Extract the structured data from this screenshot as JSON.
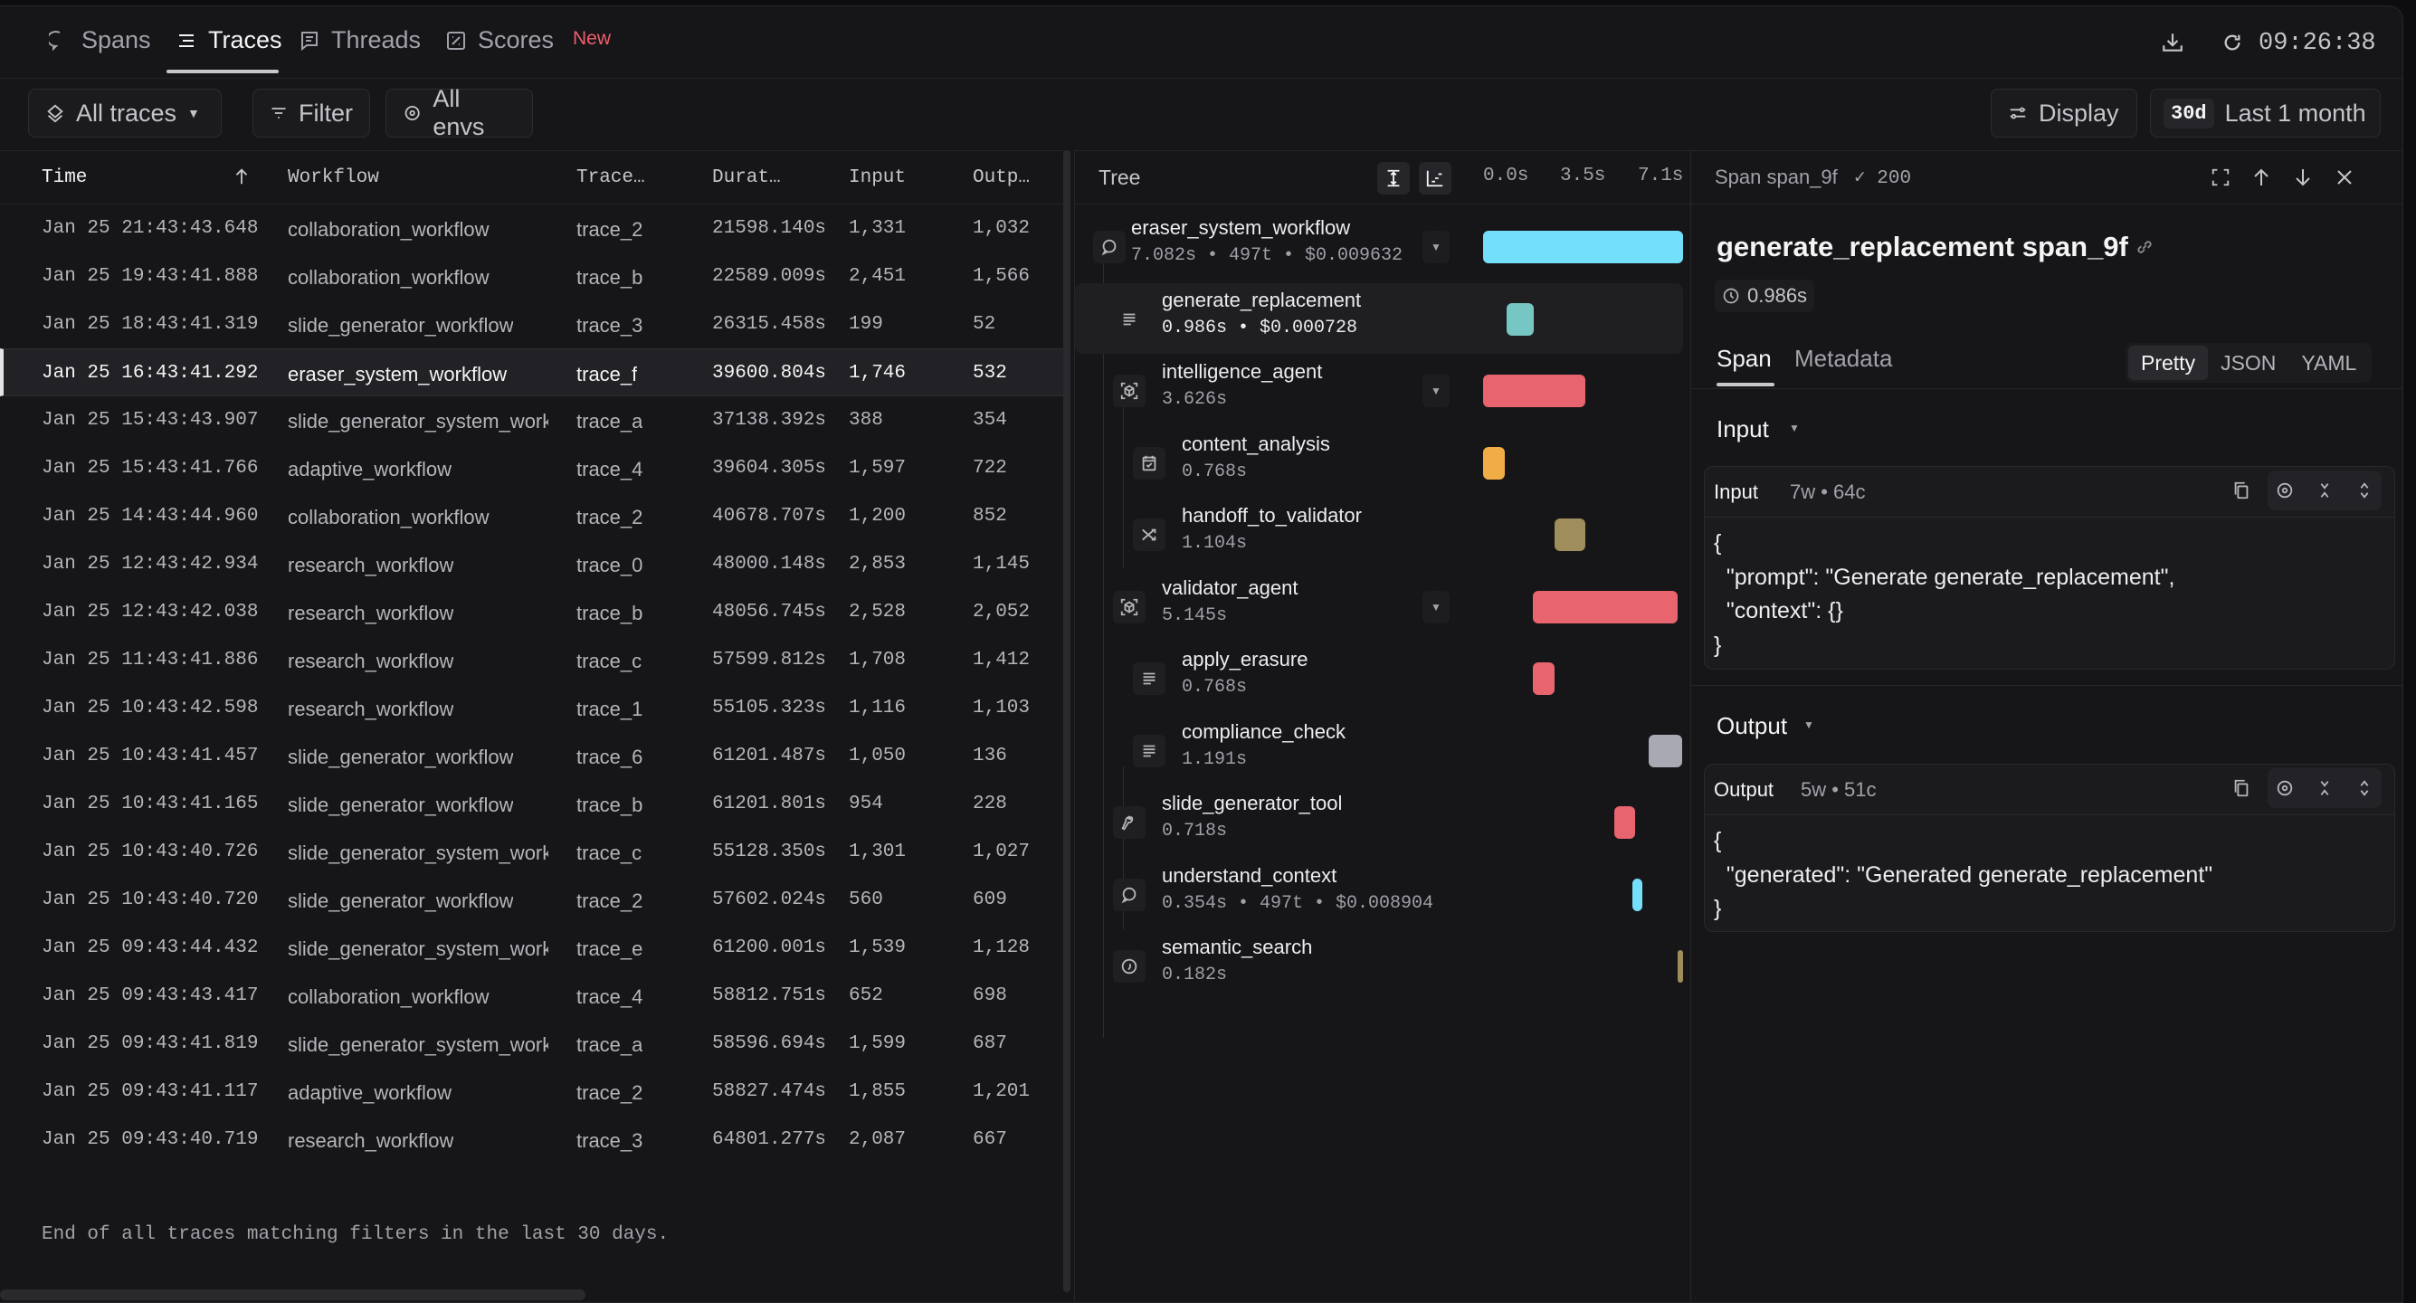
{
  "tabs": [
    {
      "label": "Spans",
      "icon": "chat-bubble-icon"
    },
    {
      "label": "Traces",
      "icon": "list-icon",
      "active": true
    },
    {
      "label": "Threads",
      "icon": "message-square-icon"
    },
    {
      "label": "Scores",
      "icon": "score-icon",
      "badge": "New"
    }
  ],
  "header": {
    "time": "09:26:38"
  },
  "toolbar": {
    "all_traces": "All traces",
    "filter": "Filter",
    "all_envs": "All envs",
    "display": "Display",
    "range_badge": "30d",
    "range_label": "Last 1 month"
  },
  "table": {
    "columns": [
      "Time",
      "Workflow",
      "Trace…",
      "Durat…",
      "Input",
      "Outp…"
    ],
    "rows": [
      [
        "Jan 25 21:43:43.648",
        "collaboration_workflow",
        "trace_2",
        "21598.140s",
        "1,331",
        "1,032"
      ],
      [
        "Jan 25 19:43:41.888",
        "collaboration_workflow",
        "trace_b",
        "22589.009s",
        "2,451",
        "1,566"
      ],
      [
        "Jan 25 18:43:41.319",
        "slide_generator_workflow",
        "trace_3",
        "26315.458s",
        "199",
        "52"
      ],
      [
        "Jan 25 16:43:41.292",
        "eraser_system_workflow",
        "trace_f",
        "39600.804s",
        "1,746",
        "532"
      ],
      [
        "Jan 25 15:43:43.907",
        "slide_generator_system_workflow",
        "trace_a",
        "37138.392s",
        "388",
        "354"
      ],
      [
        "Jan 25 15:43:41.766",
        "adaptive_workflow",
        "trace_4",
        "39604.305s",
        "1,597",
        "722"
      ],
      [
        "Jan 25 14:43:44.960",
        "collaboration_workflow",
        "trace_2",
        "40678.707s",
        "1,200",
        "852"
      ],
      [
        "Jan 25 12:43:42.934",
        "research_workflow",
        "trace_0",
        "48000.148s",
        "2,853",
        "1,145"
      ],
      [
        "Jan 25 12:43:42.038",
        "research_workflow",
        "trace_b",
        "48056.745s",
        "2,528",
        "2,052"
      ],
      [
        "Jan 25 11:43:41.886",
        "research_workflow",
        "trace_c",
        "57599.812s",
        "1,708",
        "1,412"
      ],
      [
        "Jan 25 10:43:42.598",
        "research_workflow",
        "trace_1",
        "55105.323s",
        "1,116",
        "1,103"
      ],
      [
        "Jan 25 10:43:41.457",
        "slide_generator_workflow",
        "trace_6",
        "61201.487s",
        "1,050",
        "136"
      ],
      [
        "Jan 25 10:43:41.165",
        "slide_generator_workflow",
        "trace_b",
        "61201.801s",
        "954",
        "228"
      ],
      [
        "Jan 25 10:43:40.726",
        "slide_generator_system_workflow",
        "trace_c",
        "55128.350s",
        "1,301",
        "1,027"
      ],
      [
        "Jan 25 10:43:40.720",
        "slide_generator_workflow",
        "trace_2",
        "57602.024s",
        "560",
        "609"
      ],
      [
        "Jan 25 09:43:44.432",
        "slide_generator_system_workflow",
        "trace_e",
        "61200.001s",
        "1,539",
        "1,128"
      ],
      [
        "Jan 25 09:43:43.417",
        "collaboration_workflow",
        "trace_4",
        "58812.751s",
        "652",
        "698"
      ],
      [
        "Jan 25 09:43:41.819",
        "slide_generator_system_workflow",
        "trace_a",
        "58596.694s",
        "1,599",
        "687"
      ],
      [
        "Jan 25 09:43:41.117",
        "adaptive_workflow",
        "trace_2",
        "58827.474s",
        "1,855",
        "1,201"
      ],
      [
        "Jan 25 09:43:40.719",
        "research_workflow",
        "trace_3",
        "64801.277s",
        "2,087",
        "667"
      ]
    ],
    "selected_row": 3,
    "footer": "End of all traces matching filters in the last 30 days."
  },
  "tree": {
    "title": "Tree",
    "ticks": [
      "0.0s",
      "3.5s",
      "7.1s"
    ],
    "total_seconds": 7.082,
    "nodes": [
      {
        "name": "eraser_system_workflow",
        "meta": "7.082s • 497t • $0.009632",
        "icon": "chat-bubble-icon",
        "level": 0,
        "toggle": true,
        "color": "#74dffb",
        "start": 0,
        "duration": 7.082
      },
      {
        "name": "generate_replacement",
        "meta": "0.986s • $0.000728",
        "icon": "text-lines-icon",
        "level": 1,
        "selected": true,
        "color": "#76c7c3",
        "start": 0.82,
        "duration": 0.986
      },
      {
        "name": "intelligence_agent",
        "meta": "3.626s",
        "icon": "agent-cube-icon",
        "level": 1,
        "toggle": true,
        "color": "#e8646f",
        "start": 0,
        "duration": 3.626
      },
      {
        "name": "content_analysis",
        "meta": "0.768s",
        "icon": "calendar-check-icon",
        "level": 2,
        "color": "#f0ad45",
        "start": 0,
        "duration": 0.768
      },
      {
        "name": "handoff_to_validator",
        "meta": "1.104s",
        "icon": "shuffle-icon",
        "level": 2,
        "color": "#a08d5c",
        "start": 2.52,
        "duration": 1.104
      },
      {
        "name": "validator_agent",
        "meta": "5.145s",
        "icon": "agent-cube-icon",
        "level": 1,
        "toggle": true,
        "color": "#e8646f",
        "start": 1.76,
        "duration": 5.145
      },
      {
        "name": "apply_erasure",
        "meta": "0.768s",
        "icon": "text-lines-icon",
        "level": 2,
        "color": "#e8646f",
        "start": 1.76,
        "duration": 0.768
      },
      {
        "name": "compliance_check",
        "meta": "1.191s",
        "icon": "text-lines-icon",
        "level": 2,
        "color": "#a9a9b3",
        "start": 5.85,
        "duration": 1.191
      },
      {
        "name": "slide_generator_tool",
        "meta": "0.718s",
        "icon": "wrench-icon",
        "level": 1,
        "color": "#e8646f",
        "start": 4.66,
        "duration": 0.718
      },
      {
        "name": "understand_context",
        "meta": "0.354s • 497t • $0.008904",
        "icon": "chat-bubble-icon",
        "level": 1,
        "color": "#74dffb",
        "start": 5.3,
        "duration": 0.354
      },
      {
        "name": "semantic_search",
        "meta": "0.182s",
        "icon": "quote-circle-icon",
        "level": 1,
        "color": "#a08d5c",
        "start": 6.9,
        "duration": 0.182
      }
    ]
  },
  "detail": {
    "header": "Span span_9f",
    "status": "✓ 200",
    "title": "generate_replacement span_9f",
    "duration": "0.986s",
    "tabs": [
      "Span",
      "Metadata"
    ],
    "formats": [
      "Pretty",
      "JSON",
      "YAML"
    ],
    "input": {
      "section": "Input",
      "label": "Input",
      "counts": "7w • 64c",
      "code": "{\n  \"prompt\": \"Generate generate_replacement\",\n  \"context\": {}\n}"
    },
    "output": {
      "section": "Output",
      "label": "Output",
      "counts": "5w • 51c",
      "code": "{\n  \"generated\": \"Generated generate_replacement\"\n}"
    }
  }
}
